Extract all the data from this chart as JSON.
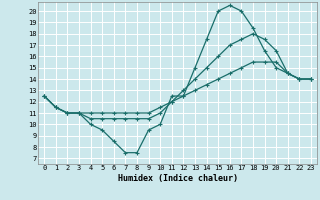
{
  "xlabel": "Humidex (Indice chaleur)",
  "bg_color": "#cce8ec",
  "grid_color": "#ffffff",
  "line_color": "#1a6e6a",
  "xlim": [
    -0.5,
    23.5
  ],
  "ylim": [
    6.5,
    20.8
  ],
  "xticks": [
    0,
    1,
    2,
    3,
    4,
    5,
    6,
    7,
    8,
    9,
    10,
    11,
    12,
    13,
    14,
    15,
    16,
    17,
    18,
    19,
    20,
    21,
    22,
    23
  ],
  "yticks": [
    7,
    8,
    9,
    10,
    11,
    12,
    13,
    14,
    15,
    16,
    17,
    18,
    19,
    20
  ],
  "line1_x": [
    0,
    1,
    2,
    3,
    4,
    5,
    6,
    7,
    8,
    9,
    10,
    11,
    12,
    13,
    14,
    15,
    16,
    17,
    18,
    19,
    20,
    21,
    22,
    23
  ],
  "line1_y": [
    12.5,
    11.5,
    11.0,
    11.0,
    10.0,
    9.5,
    8.5,
    7.5,
    7.5,
    9.5,
    10.0,
    12.5,
    12.5,
    15.0,
    17.5,
    20.0,
    20.5,
    20.0,
    18.5,
    16.5,
    15.0,
    14.5,
    14.0,
    14.0
  ],
  "line2_x": [
    0,
    1,
    2,
    3,
    4,
    5,
    6,
    7,
    8,
    9,
    10,
    11,
    12,
    13,
    14,
    15,
    16,
    17,
    18,
    19,
    20,
    21,
    22,
    23
  ],
  "line2_y": [
    12.5,
    11.5,
    11.0,
    11.0,
    10.5,
    10.5,
    10.5,
    10.5,
    10.5,
    10.5,
    11.0,
    12.0,
    13.0,
    14.0,
    15.0,
    16.0,
    17.0,
    17.5,
    18.0,
    17.5,
    16.5,
    14.5,
    14.0,
    14.0
  ],
  "line3_x": [
    0,
    1,
    2,
    3,
    4,
    5,
    6,
    7,
    8,
    9,
    10,
    11,
    12,
    13,
    14,
    15,
    16,
    17,
    18,
    19,
    20,
    21,
    22,
    23
  ],
  "line3_y": [
    12.5,
    11.5,
    11.0,
    11.0,
    11.0,
    11.0,
    11.0,
    11.0,
    11.0,
    11.0,
    11.5,
    12.0,
    12.5,
    13.0,
    13.5,
    14.0,
    14.5,
    15.0,
    15.5,
    15.5,
    15.5,
    14.5,
    14.0,
    14.0
  ],
  "tick_fontsize": 5.0,
  "xlabel_fontsize": 6.0
}
